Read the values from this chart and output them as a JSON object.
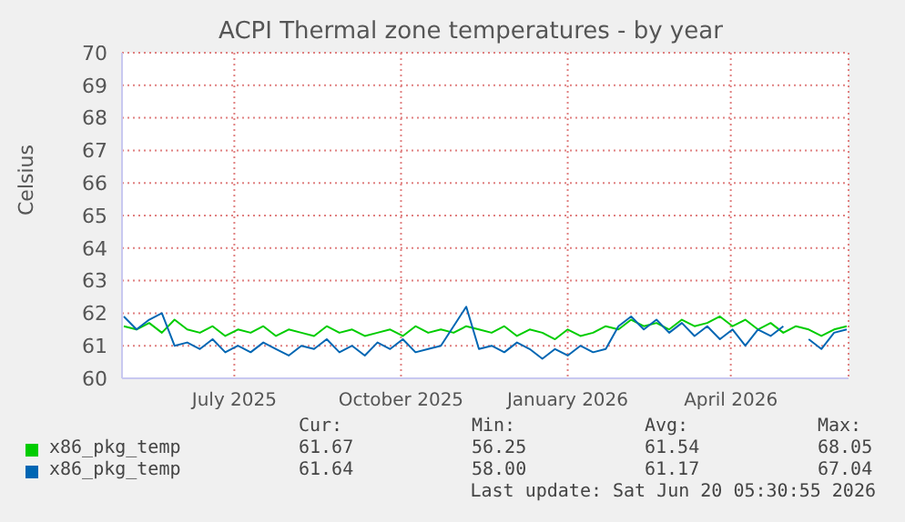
{
  "chart_data": {
    "type": "line",
    "title": "ACPI Thermal zone temperatures - by year",
    "ylabel": "Celsius",
    "x": [
      "2025-05-16",
      "2025-05-23",
      "2025-05-30",
      "2025-06-06",
      "2025-06-13",
      "2025-06-20",
      "2025-06-27",
      "2025-07-04",
      "2025-07-11",
      "2025-07-18",
      "2025-07-25",
      "2025-08-01",
      "2025-08-08",
      "2025-08-15",
      "2025-08-22",
      "2025-08-29",
      "2025-09-05",
      "2025-09-12",
      "2025-09-19",
      "2025-09-26",
      "2025-10-03",
      "2025-10-10",
      "2025-10-17",
      "2025-10-24",
      "2025-10-31",
      "2025-11-07",
      "2025-11-14",
      "2025-11-21",
      "2025-11-28",
      "2025-12-05",
      "2025-12-12",
      "2025-12-19",
      "2025-12-26",
      "2026-01-02",
      "2026-01-09",
      "2026-01-16",
      "2026-01-23",
      "2026-01-30",
      "2026-02-06",
      "2026-02-13",
      "2026-02-20",
      "2026-02-27",
      "2026-03-06",
      "2026-03-13",
      "2026-03-20",
      "2026-03-27",
      "2026-04-03",
      "2026-04-10",
      "2026-04-17",
      "2026-04-24",
      "2026-05-01",
      "2026-05-08",
      "2026-05-15",
      "2026-05-22",
      "2026-05-29",
      "2026-06-05",
      "2026-06-12",
      "2026-06-19"
    ],
    "series": [
      {
        "name": "x86_pkg_temp",
        "color": "#00cc00",
        "values": [
          61.6,
          61.5,
          61.7,
          61.4,
          61.8,
          61.5,
          61.4,
          61.6,
          61.3,
          61.5,
          61.4,
          61.6,
          61.3,
          61.5,
          61.4,
          61.3,
          61.6,
          61.4,
          61.5,
          61.3,
          61.4,
          61.5,
          61.3,
          61.6,
          61.4,
          61.5,
          61.4,
          61.6,
          61.5,
          61.4,
          61.6,
          61.3,
          61.5,
          61.4,
          61.2,
          61.5,
          61.3,
          61.4,
          61.6,
          61.5,
          61.8,
          61.6,
          61.7,
          61.5,
          61.8,
          61.6,
          61.7,
          61.9,
          61.6,
          61.8,
          61.5,
          61.7,
          61.4,
          61.6,
          61.5,
          61.3,
          61.5,
          61.6
        ]
      },
      {
        "name": "x86_pkg_temp",
        "color": "#0066b3",
        "values": [
          61.9,
          61.5,
          61.8,
          62.0,
          61.0,
          61.1,
          60.9,
          61.2,
          60.8,
          61.0,
          60.8,
          61.1,
          60.9,
          60.7,
          61.0,
          60.9,
          61.2,
          60.8,
          61.0,
          60.7,
          61.1,
          60.9,
          61.2,
          60.8,
          60.9,
          61.0,
          61.6,
          62.2,
          60.9,
          61.0,
          60.8,
          61.1,
          60.9,
          60.6,
          60.9,
          60.7,
          61.0,
          60.8,
          60.9,
          61.6,
          61.9,
          61.5,
          61.8,
          61.4,
          61.7,
          61.3,
          61.6,
          61.2,
          61.5,
          61.0,
          61.5,
          61.3,
          61.6,
          null,
          61.2,
          60.9,
          61.4,
          61.5
        ]
      }
    ],
    "xlim": [
      "2025-05-15",
      "2026-06-20"
    ],
    "xticks": [
      {
        "value": "2025-07-16",
        "label": "July 2025"
      },
      {
        "value": "2025-10-16",
        "label": "October 2025"
      },
      {
        "value": "2026-01-16",
        "label": "January 2026"
      },
      {
        "value": "2026-04-16",
        "label": "April 2026"
      }
    ],
    "ylim": [
      60,
      70
    ],
    "yticks": [
      60,
      61,
      62,
      63,
      64,
      65,
      66,
      67,
      68,
      69,
      70
    ],
    "grid": true,
    "legend": "bottom",
    "annotations": [
      "Cur:",
      "Min:",
      "Avg:",
      "Max:",
      "61.67",
      "56.25",
      "61.54",
      "68.05",
      "61.64",
      "58.00",
      "61.17",
      "67.04",
      "Last update: Sat Jun 20 05:30:55 2026"
    ]
  }
}
